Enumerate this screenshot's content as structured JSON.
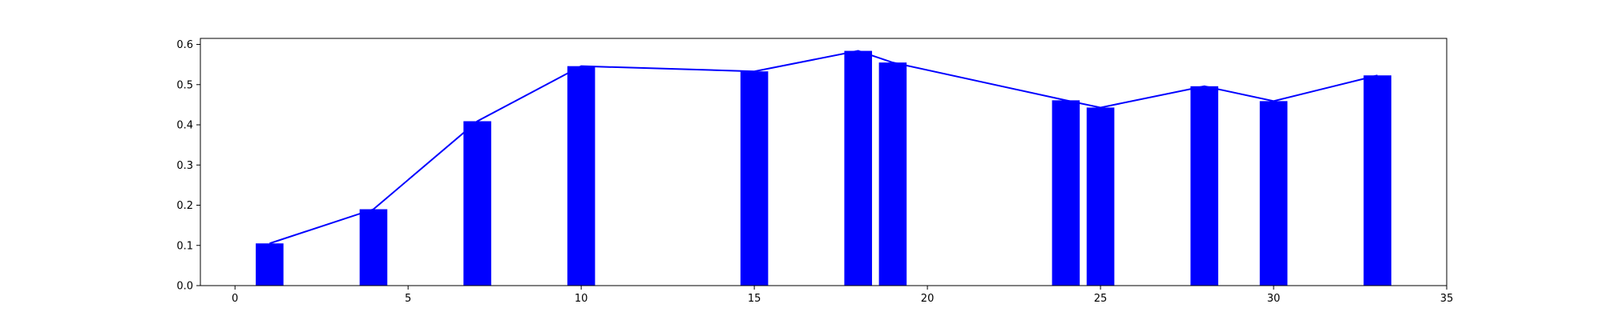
{
  "chart_data": {
    "type": "bar",
    "title": "",
    "xlabel": "",
    "ylabel": "",
    "xlim": [
      -1,
      35
    ],
    "ylim": [
      0,
      0.615
    ],
    "grid": false,
    "x_ticks": [
      0,
      5,
      10,
      15,
      20,
      25,
      30,
      35
    ],
    "y_ticks": [
      0.0,
      0.1,
      0.2,
      0.3,
      0.4,
      0.5,
      0.6
    ],
    "x_tick_labels": [
      "0",
      "5",
      "10",
      "15",
      "20",
      "25",
      "30",
      "35"
    ],
    "y_tick_labels": [
      "0.0",
      "0.1",
      "0.2",
      "0.3",
      "0.4",
      "0.5",
      "0.6"
    ],
    "bar_width": 0.8,
    "series": [
      {
        "type": "bar",
        "color": "#0000ff",
        "x": [
          1,
          4,
          7,
          10,
          15,
          18,
          19,
          24,
          25,
          28,
          30,
          33
        ],
        "values": [
          0.105,
          0.19,
          0.409,
          0.546,
          0.533,
          0.584,
          0.555,
          0.461,
          0.443,
          0.496,
          0.459,
          0.523
        ]
      },
      {
        "type": "line",
        "color": "#0000ff",
        "x": [
          1,
          4,
          7,
          10,
          15,
          18,
          19,
          24,
          25,
          28,
          30,
          33
        ],
        "values": [
          0.105,
          0.19,
          0.409,
          0.546,
          0.533,
          0.584,
          0.555,
          0.461,
          0.443,
          0.496,
          0.459,
          0.523
        ]
      }
    ]
  }
}
